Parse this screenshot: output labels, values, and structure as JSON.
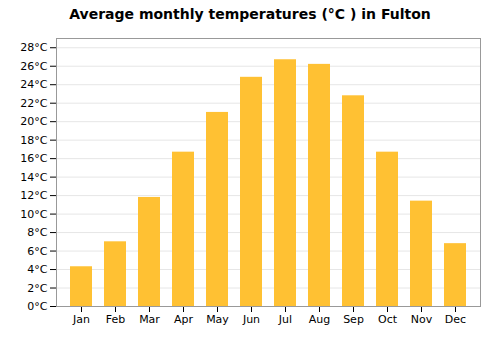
{
  "chart_data": {
    "type": "bar",
    "title": "Average monthly temperatures (°C ) in Fulton",
    "categories": [
      "Jan",
      "Feb",
      "Mar",
      "Apr",
      "May",
      "Jun",
      "Jul",
      "Aug",
      "Sep",
      "Oct",
      "Nov",
      "Dec"
    ],
    "values": [
      4.3,
      7.0,
      11.8,
      16.7,
      21.0,
      24.8,
      26.7,
      26.2,
      22.8,
      16.7,
      11.4,
      6.8
    ],
    "color": "#FFC133",
    "ylim": [
      0,
      29
    ],
    "yticks": [
      {
        "value": 0,
        "label": "0°C"
      },
      {
        "value": 2,
        "label": "2°C"
      },
      {
        "value": 4,
        "label": "4°C"
      },
      {
        "value": 6,
        "label": "6°C"
      },
      {
        "value": 8,
        "label": "8°C"
      },
      {
        "value": 10,
        "label": "10°C"
      },
      {
        "value": 12,
        "label": "12°C"
      },
      {
        "value": 14,
        "label": "14°C"
      },
      {
        "value": 16,
        "label": "16°C"
      },
      {
        "value": 18,
        "label": "18°C"
      },
      {
        "value": 20,
        "label": "20°C"
      },
      {
        "value": 22,
        "label": "22°C"
      },
      {
        "value": 24,
        "label": "24°C"
      },
      {
        "value": 26,
        "label": "26°C"
      },
      {
        "value": 28,
        "label": "28°C"
      }
    ],
    "grid": true
  }
}
